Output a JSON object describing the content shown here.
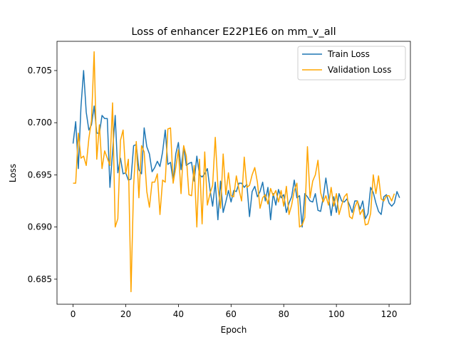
{
  "chart_data": {
    "type": "line",
    "title": "Loss of enhancer E22P1E6 on mm_v_all",
    "xlabel": "Epoch",
    "ylabel": "Loss",
    "xlim": [
      -6.1,
      128.1
    ],
    "ylim": [
      0.6826,
      0.7078
    ],
    "xticks": [
      0,
      20,
      40,
      60,
      80,
      100,
      120
    ],
    "yticks": [
      0.685,
      0.69,
      0.695,
      0.7,
      0.705
    ],
    "xtick_labels": [
      "0",
      "20",
      "40",
      "60",
      "80",
      "100",
      "120"
    ],
    "ytick_labels": [
      "0.685",
      "0.690",
      "0.695",
      "0.700",
      "0.705"
    ],
    "grid": false,
    "legend_position": "top-right",
    "series": [
      {
        "name": "Train Loss",
        "color": "#1f77b4",
        "values": [
          0.698,
          0.7001,
          0.6956,
          0.7015,
          0.705,
          0.701,
          0.6993,
          0.6998,
          0.7016,
          0.699,
          0.699,
          0.7007,
          0.7004,
          0.7004,
          0.6938,
          0.6972,
          0.7007,
          0.6952,
          0.6966,
          0.6951,
          0.6952,
          0.6945,
          0.6946,
          0.6978,
          0.6979,
          0.6955,
          0.6951,
          0.6995,
          0.6977,
          0.697,
          0.6953,
          0.6957,
          0.6963,
          0.6958,
          0.6972,
          0.6993,
          0.696,
          0.6962,
          0.6944,
          0.697,
          0.6981,
          0.6955,
          0.6977,
          0.6959,
          0.6961,
          0.6962,
          0.6944,
          0.6968,
          0.695,
          0.6948,
          0.6951,
          0.6956,
          0.6936,
          0.692,
          0.6943,
          0.6907,
          0.6944,
          0.6914,
          0.6924,
          0.6935,
          0.6924,
          0.6935,
          0.6934,
          0.6942,
          0.6942,
          0.6938,
          0.6941,
          0.691,
          0.6934,
          0.6939,
          0.6929,
          0.6934,
          0.6943,
          0.6925,
          0.6938,
          0.6907,
          0.6932,
          0.6921,
          0.6936,
          0.6928,
          0.6931,
          0.6914,
          0.6923,
          0.6929,
          0.6945,
          0.6928,
          0.693,
          0.69,
          0.6932,
          0.6929,
          0.6925,
          0.6924,
          0.6932,
          0.6916,
          0.6915,
          0.6928,
          0.6947,
          0.6929,
          0.6911,
          0.6929,
          0.6914,
          0.6932,
          0.6925,
          0.6924,
          0.6927,
          0.6921,
          0.6914,
          0.6925,
          0.6925,
          0.6917,
          0.6925,
          0.6908,
          0.6913,
          0.6938,
          0.6933,
          0.6923,
          0.6915,
          0.6912,
          0.6929,
          0.6931,
          0.6923,
          0.692,
          0.6923,
          0.6934,
          0.6928
        ]
      },
      {
        "name": "Validation Loss",
        "color": "#ffa500",
        "values": [
          0.6942,
          0.6942,
          0.699,
          0.6966,
          0.6968,
          0.6959,
          0.6985,
          0.7002,
          0.7068,
          0.6965,
          0.6998,
          0.6956,
          0.6973,
          0.6966,
          0.6959,
          0.7019,
          0.69,
          0.6908,
          0.6983,
          0.6993,
          0.6951,
          0.6965,
          0.6838,
          0.694,
          0.6982,
          0.6928,
          0.6978,
          0.6972,
          0.6934,
          0.6919,
          0.6943,
          0.6943,
          0.6951,
          0.6912,
          0.6945,
          0.6943,
          0.6994,
          0.6995,
          0.6942,
          0.6957,
          0.6974,
          0.6932,
          0.6978,
          0.6968,
          0.6931,
          0.693,
          0.6959,
          0.69,
          0.6965,
          0.6903,
          0.6972,
          0.6921,
          0.6932,
          0.694,
          0.6986,
          0.6939,
          0.6918,
          0.697,
          0.6931,
          0.6952,
          0.693,
          0.6929,
          0.6949,
          0.6936,
          0.6925,
          0.6967,
          0.6938,
          0.694,
          0.695,
          0.6957,
          0.6943,
          0.6918,
          0.6928,
          0.6931,
          0.6922,
          0.6937,
          0.693,
          0.6935,
          0.6924,
          0.6935,
          0.692,
          0.6939,
          0.6912,
          0.6921,
          0.6935,
          0.6942,
          0.69,
          0.6902,
          0.6909,
          0.6977,
          0.6928,
          0.6944,
          0.695,
          0.6964,
          0.6933,
          0.6924,
          0.693,
          0.6921,
          0.6938,
          0.692,
          0.6932,
          0.6912,
          0.6921,
          0.6929,
          0.6932,
          0.691,
          0.6908,
          0.6919,
          0.6925,
          0.6912,
          0.6917,
          0.6902,
          0.6903,
          0.6913,
          0.695,
          0.6932,
          0.6949,
          0.6927,
          0.6925,
          0.693,
          0.693,
          0.6925,
          0.6932
        ]
      }
    ]
  }
}
